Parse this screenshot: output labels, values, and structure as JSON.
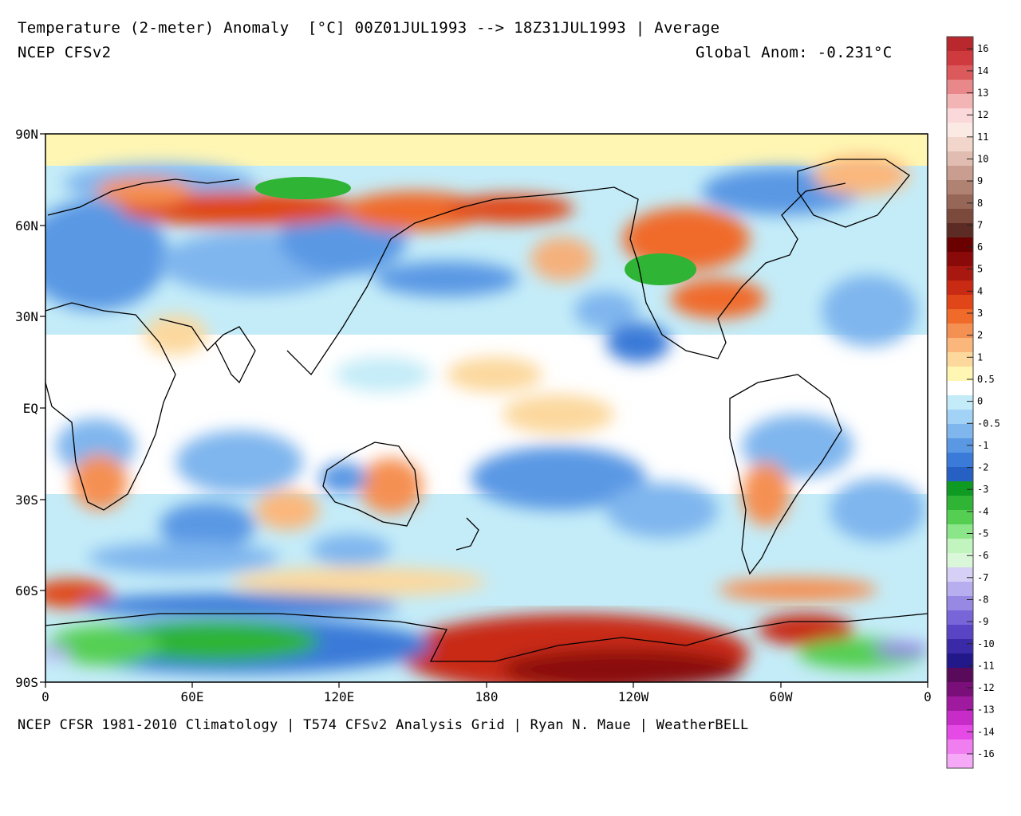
{
  "header": {
    "title": "Temperature (2-meter) Anomaly  [°C] 00Z01JUL1993 --> 18Z31JUL1993 | Average",
    "model": "NCEP CFSv2",
    "global_anom": "Global Anom: -0.231°C"
  },
  "footer": {
    "credit": "NCEP CFSR 1981-2010 Climatology | T574 CFSv2 Analysis Grid | Ryan N. Maue | WeatherBELL"
  },
  "map": {
    "lat_labels": [
      "90N",
      "60N",
      "30N",
      "EQ",
      "30S",
      "60S",
      "90S"
    ],
    "lon_labels": [
      "0",
      "60E",
      "120E",
      "180",
      "120W",
      "60W",
      "0"
    ]
  },
  "colorbar": {
    "labels": [
      "16",
      "14",
      "13",
      "12",
      "11",
      "10",
      "9",
      "8",
      "7",
      "6",
      "5",
      "4",
      "3",
      "2",
      "1",
      "0.5",
      "0",
      "-0.5",
      "-1",
      "-2",
      "-3",
      "-4",
      "-5",
      "-6",
      "-7",
      "-8",
      "-9",
      "-10",
      "-11",
      "-12",
      "-13",
      "-14",
      "-16"
    ],
    "colors": [
      "#b8282d",
      "#cf3a3e",
      "#dc5a5c",
      "#e8888a",
      "#f3b4b5",
      "#fbd9da",
      "#fbe9e3",
      "#f2d6cc",
      "#e0bdb0",
      "#c99d8f",
      "#b08272",
      "#966657",
      "#7c4a3d",
      "#5c2c24",
      "#6a0000",
      "#8a0a0a",
      "#a81810",
      "#c82a14",
      "#e04618",
      "#f06a2a",
      "#f59053",
      "#fbb77b",
      "#fcd89d",
      "#fff6b3",
      "#ffffff",
      "#c4ecf8",
      "#a2d2f5",
      "#7fb6ee",
      "#5a98e4",
      "#3a7ad8",
      "#2560c2",
      "#0f9a23",
      "#2fb435",
      "#55cf52",
      "#8be68a",
      "#c2f4c0",
      "#dbf7d9",
      "#d6d0f6",
      "#b7aef0",
      "#9788e4",
      "#7865d8",
      "#5a44c6",
      "#3a2aa8",
      "#22188a",
      "#5a0a5a",
      "#7a0f7a",
      "#a01aa0",
      "#c82cc8",
      "#e64ae6",
      "#f07ef0",
      "#f6a9f6"
    ]
  }
}
